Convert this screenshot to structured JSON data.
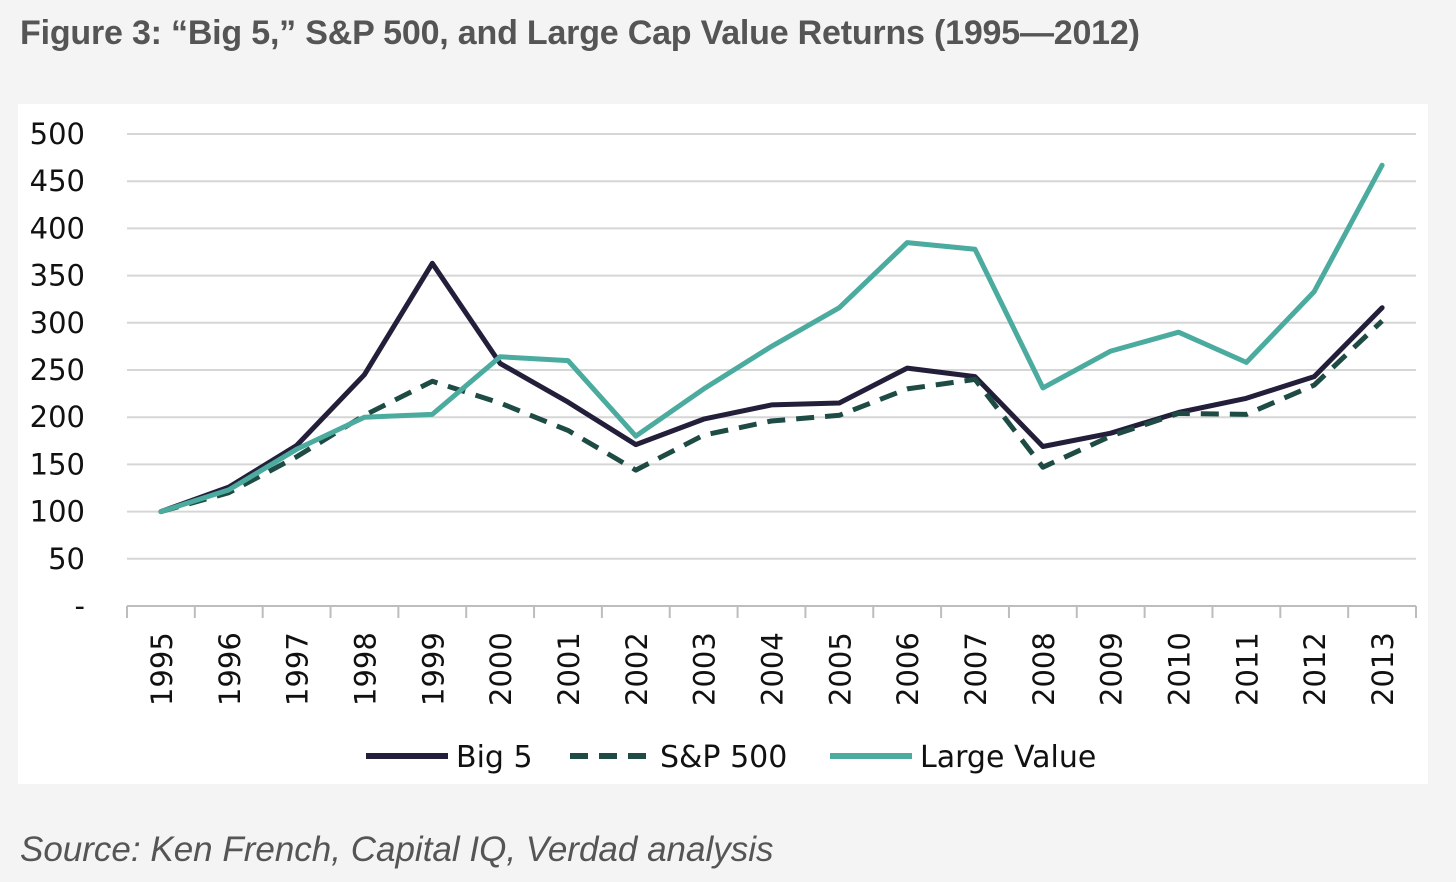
{
  "figure": {
    "title": "Figure 3: “Big 5,” S&P 500, and Large Cap Value Returns (1995—2012)",
    "source": "Source: Ken French, Capital IQ, Verdad analysis"
  },
  "chart_data": {
    "type": "line",
    "title": "",
    "xlabel": "",
    "ylabel": "",
    "categories": [
      "1995",
      "1996",
      "1997",
      "1998",
      "1999",
      "2000",
      "2001",
      "2002",
      "2003",
      "2004",
      "2005",
      "2006",
      "2007",
      "2008",
      "2009",
      "2010",
      "2011",
      "2012",
      "2013"
    ],
    "ylim": [
      0,
      500
    ],
    "yticks": [
      0,
      50,
      100,
      150,
      200,
      250,
      300,
      350,
      400,
      450,
      500
    ],
    "ytick_labels": [
      "-",
      "50",
      "100",
      "150",
      "200",
      "250",
      "300",
      "350",
      "400",
      "450",
      "500"
    ],
    "grid": "horizontal",
    "legend_position": "bottom",
    "series": [
      {
        "name": "Big 5",
        "color": "#231f3a",
        "style": "solid",
        "values": [
          100,
          126,
          170,
          245,
          363,
          257,
          216,
          171,
          198,
          213,
          215,
          252,
          243,
          169,
          183,
          205,
          220,
          243,
          316
        ]
      },
      {
        "name": "S&P 500",
        "color": "#1e4b43",
        "style": "dashed",
        "values": [
          100,
          120,
          158,
          202,
          238,
          215,
          186,
          144,
          181,
          196,
          202,
          230,
          240,
          147,
          180,
          204,
          203,
          234,
          302
        ]
      },
      {
        "name": "Large Value",
        "color": "#4aab9e",
        "style": "solid",
        "values": [
          100,
          123,
          166,
          200,
          203,
          264,
          260,
          180,
          230,
          275,
          316,
          385,
          378,
          231,
          270,
          290,
          258,
          333,
          467
        ]
      }
    ]
  }
}
